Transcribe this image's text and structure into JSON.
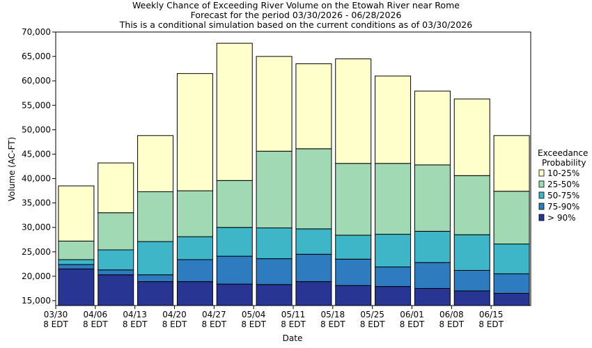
{
  "chart_data": {
    "type": "bar",
    "stacked": true,
    "title": [
      "Weekly Chance of Exceeding River Volume on the Etowah River near Rome",
      "Forecast for the period 03/30/2026 - 06/28/2026",
      "This is a conditional simulation based on the current conditions as of 03/30/2026"
    ],
    "xlabel": "Date",
    "ylabel": "Volume (AC-FT)",
    "ylim": [
      14000,
      70000
    ],
    "yticks": [
      15000,
      20000,
      25000,
      30000,
      35000,
      40000,
      45000,
      50000,
      55000,
      60000,
      65000,
      70000
    ],
    "ytick_labels": [
      "15,000",
      "20,000",
      "25,000",
      "30,000",
      "35,000",
      "40,000",
      "45,000",
      "50,000",
      "55,000",
      "60,000",
      "65,000",
      "70,000"
    ],
    "categories": [
      {
        "date": "03/30",
        "tz": "8 EDT"
      },
      {
        "date": "04/06",
        "tz": "8 EDT"
      },
      {
        "date": "04/13",
        "tz": "8 EDT"
      },
      {
        "date": "04/20",
        "tz": "8 EDT"
      },
      {
        "date": "04/27",
        "tz": "8 EDT"
      },
      {
        "date": "05/04",
        "tz": "8 EDT"
      },
      {
        "date": "05/11",
        "tz": "8 EDT"
      },
      {
        "date": "05/18",
        "tz": "8 EDT"
      },
      {
        "date": "05/25",
        "tz": "8 EDT"
      },
      {
        "date": "06/01",
        "tz": "8 EDT"
      },
      {
        "date": "06/08",
        "tz": "8 EDT"
      },
      {
        "date": "06/15",
        "tz": "8 EDT"
      }
    ],
    "legend": {
      "title_lines": [
        "Exceedance",
        "Probability"
      ],
      "placement": "right"
    },
    "series": [
      {
        "name": "> 90%",
        "color": "#283593",
        "top_values": [
          21500,
          20300,
          18900,
          18900,
          18400,
          18300,
          18900,
          18100,
          17900,
          17500,
          17000,
          16500
        ]
      },
      {
        "name": "75-90%",
        "color": "#2f7bbf",
        "top_values": [
          22400,
          21300,
          20300,
          23400,
          24100,
          23600,
          24500,
          23500,
          21900,
          22800,
          21200,
          20500
        ]
      },
      {
        "name": "50-75%",
        "color": "#3fb5c8",
        "top_values": [
          23400,
          25400,
          27100,
          28100,
          30000,
          29900,
          29700,
          28400,
          28600,
          29200,
          28500,
          26600
        ]
      },
      {
        "name": "25-50%",
        "color": "#a0d9b4",
        "top_values": [
          27200,
          33000,
          37300,
          37500,
          39600,
          45600,
          46100,
          43100,
          43100,
          42800,
          40600,
          37400
        ]
      },
      {
        "name": "10-25%",
        "color": "#ffffcc",
        "top_values": [
          38500,
          43200,
          48800,
          61500,
          67700,
          65000,
          63500,
          64500,
          61000,
          57900,
          56300,
          48800
        ]
      }
    ],
    "legend_order": [
      "10-25%",
      "25-50%",
      "50-75%",
      "75-90%",
      "> 90%"
    ]
  }
}
